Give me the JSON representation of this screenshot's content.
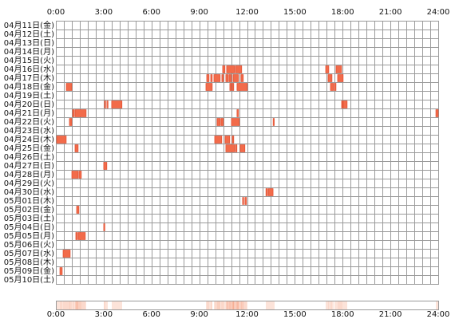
{
  "chart_data": {
    "type": "heatmap",
    "x_ticks": [
      "0:00",
      "3:00",
      "6:00",
      "9:00",
      "12:00",
      "15:00",
      "18:00",
      "21:00",
      "24:00"
    ],
    "xlim": [
      "0:00",
      "24:00"
    ],
    "grid": true,
    "colors": {
      "activity": "#f26b4a",
      "activity_edge": "#dc4526",
      "grid": "#9a9a9a",
      "density": "#f49a78"
    },
    "rows": [
      {
        "label": "04月11日(金)",
        "segments": []
      },
      {
        "label": "04月12日(土)",
        "segments": []
      },
      {
        "label": "04月13日(日)",
        "segments": []
      },
      {
        "label": "04月14日(月)",
        "segments": []
      },
      {
        "label": "04月15日(火)",
        "segments": []
      },
      {
        "label": "04月16日(水)",
        "segments": [
          [
            "10:28",
            "10:37"
          ],
          [
            "10:43",
            "11:13"
          ],
          [
            "11:16",
            "11:40"
          ],
          [
            "16:56",
            "17:08"
          ],
          [
            "17:35",
            "17:56"
          ]
        ]
      },
      {
        "label": "04月17日(木)",
        "segments": [
          [
            "9:28",
            "9:37"
          ],
          [
            "9:43",
            "9:49"
          ],
          [
            "9:55",
            "10:19"
          ],
          [
            "10:25",
            "10:31"
          ],
          [
            "10:40",
            "10:49"
          ],
          [
            "10:52",
            "11:01"
          ],
          [
            "11:07",
            "11:28"
          ],
          [
            "11:37",
            "11:46"
          ],
          [
            "17:05",
            "17:20"
          ],
          [
            "17:41",
            "18:02"
          ]
        ]
      },
      {
        "label": "04月18日(金)",
        "segments": [
          [
            "0:39",
            "1:00"
          ],
          [
            "9:25",
            "9:49"
          ],
          [
            "10:55",
            "11:01"
          ],
          [
            "11:04",
            "11:10"
          ],
          [
            "11:22",
            "12:01"
          ],
          [
            "17:14",
            "17:26"
          ],
          [
            "17:29",
            "17:35"
          ]
        ]
      },
      {
        "label": "04月19日(土)",
        "segments": []
      },
      {
        "label": "04月20日(日)",
        "segments": [
          [
            "3:03",
            "3:06"
          ],
          [
            "3:12",
            "3:15"
          ],
          [
            "3:30",
            "4:09"
          ],
          [
            "17:56",
            "17:59"
          ],
          [
            "18:02",
            "18:17"
          ]
        ]
      },
      {
        "label": "04月21日(月)",
        "segments": [
          [
            "1:03",
            "1:09"
          ],
          [
            "1:12",
            "1:54"
          ],
          [
            "11:22",
            "11:28"
          ],
          [
            "23:51",
            "24:00"
          ]
        ]
      },
      {
        "label": "04月22日(火)",
        "segments": [
          [
            "0:51",
            "1:00"
          ],
          [
            "10:07",
            "10:19"
          ],
          [
            "10:22",
            "10:31"
          ],
          [
            "11:01",
            "11:31"
          ],
          [
            "13:38",
            "13:41"
          ]
        ]
      },
      {
        "label": "04月23日(水)",
        "segments": []
      },
      {
        "label": "04月24日(木)",
        "segments": [
          [
            "0:03",
            "0:39"
          ],
          [
            "9:58",
            "10:25"
          ],
          [
            "10:37",
            "10:55"
          ],
          [
            "11:04",
            "11:10"
          ]
        ]
      },
      {
        "label": "04月25日(金)",
        "segments": [
          [
            "1:12",
            "1:24"
          ],
          [
            "10:40",
            "11:13"
          ],
          [
            "11:16",
            "11:22"
          ],
          [
            "11:34",
            "11:52"
          ]
        ]
      },
      {
        "label": "04月26日(土)",
        "segments": []
      },
      {
        "label": "04月27日(日)",
        "segments": [
          [
            "3:00",
            "3:12"
          ]
        ]
      },
      {
        "label": "04月28日(月)",
        "segments": [
          [
            "1:00",
            "1:24"
          ],
          [
            "1:27",
            "1:36"
          ]
        ]
      },
      {
        "label": "04月29日(火)",
        "segments": []
      },
      {
        "label": "04月30日(水)",
        "segments": [
          [
            "13:11",
            "13:17"
          ],
          [
            "13:20",
            "13:38"
          ]
        ]
      },
      {
        "label": "05月01日(木)",
        "segments": [
          [
            "11:43",
            "11:46"
          ],
          [
            "11:52",
            "11:58"
          ]
        ]
      },
      {
        "label": "05月02日(金)",
        "segments": [
          [
            "1:18",
            "1:27"
          ]
        ]
      },
      {
        "label": "05月03日(土)",
        "segments": []
      },
      {
        "label": "05月04日(日)",
        "segments": [
          [
            "3:00",
            "3:03"
          ]
        ]
      },
      {
        "label": "05月05日(月)",
        "segments": [
          [
            "1:15",
            "1:21"
          ],
          [
            "1:24",
            "1:51"
          ]
        ]
      },
      {
        "label": "05月06日(火)",
        "segments": []
      },
      {
        "label": "05月07日(水)",
        "segments": [
          [
            "0:27",
            "0:54"
          ]
        ]
      },
      {
        "label": "05月08日(木)",
        "segments": []
      },
      {
        "label": "05月09日(金)",
        "segments": [
          [
            "0:15",
            "0:24"
          ]
        ]
      },
      {
        "label": "05月10日(土)",
        "segments": []
      }
    ]
  }
}
